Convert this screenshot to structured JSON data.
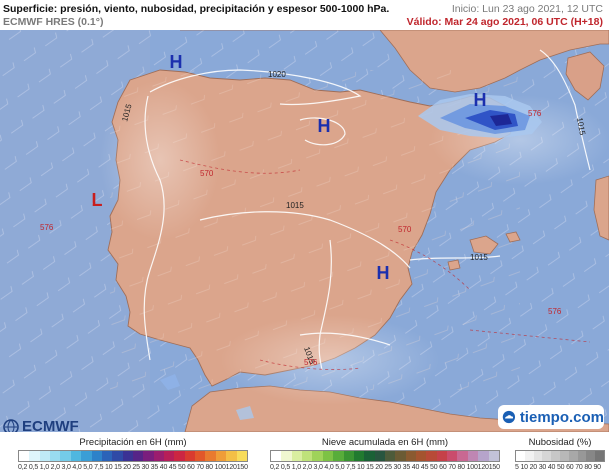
{
  "header": {
    "title": "Superficie: presión, viento, nubosidad, precipitación y espesor 500-1000 hPa.",
    "model": "ECMWF HRES (0.1°)",
    "init": "Inicio: Lun 23 ago 2021, 12 UTC",
    "valid": "Válido: Mar 24 ago 2021, 06 UTC (H+18)"
  },
  "map": {
    "pressure_centers": [
      {
        "label": "H",
        "type": "high"
      },
      {
        "label": "H",
        "type": "high"
      },
      {
        "label": "H",
        "type": "high"
      },
      {
        "label": "H",
        "type": "high"
      },
      {
        "label": "L",
        "type": "low"
      }
    ],
    "isobar_labels": [
      "1020",
      "1015",
      "1015",
      "1015",
      "1015",
      "1015"
    ],
    "thickness_labels": [
      "570",
      "570",
      "576",
      "576",
      "576",
      "576"
    ],
    "colors": {
      "sea": "#8aa9d8",
      "land": "#dba58c",
      "high": "#1b2fae",
      "low": "#c81e1e",
      "isobar": "#ffffff",
      "thickness": "#c0262d"
    }
  },
  "logos": {
    "ecmwf": "ECMWF",
    "tiempo": "tiempo.com"
  },
  "legends": {
    "precip": {
      "title": "Precipitación en 6H (mm)",
      "labels": "0,2 0,5 1,0 2,0 3,0 4,0 5,0 7,5 10 15 20 25 30 35 40 45 50 60 70 80 100120150",
      "colors": [
        "#ffffff",
        "#dff5fb",
        "#bfeaf6",
        "#99dcf0",
        "#74cbe8",
        "#4fb7e0",
        "#3a9ed6",
        "#2d82c9",
        "#2b63b8",
        "#2f4aa6",
        "#3b3294",
        "#562487",
        "#7a1e7d",
        "#9b1d6e",
        "#b71e58",
        "#cc2642",
        "#d93b2f",
        "#e2572a",
        "#e97a2f",
        "#ef9d38",
        "#f4bf46",
        "#f8dc5c"
      ]
    },
    "snow": {
      "title": "Nieve acumulada en 6H (mm)",
      "labels": "0,2 0,5 1,0 2,0 3,0 4,0 5,0 7,5 10 15 20 25 30 35 40 45 50 60 70 80 100120150",
      "colors": [
        "#ffffff",
        "#f0f7d0",
        "#d9eea0",
        "#bfe27a",
        "#9fd35a",
        "#7dc245",
        "#58ad3a",
        "#3a9432",
        "#217a2f",
        "#1a6136",
        "#28553f",
        "#4d5b3a",
        "#6b5b34",
        "#8a5a30",
        "#a4542f",
        "#b84a37",
        "#c54149",
        "#ca4c6c",
        "#c96892",
        "#bf86b3",
        "#b6a4cb",
        "#c2c2d8"
      ]
    },
    "clouds": {
      "title": "Nubosidad (%)",
      "labels": "5 10 20 30 40 50 60 70 80 90",
      "colors": [
        "#ffffff",
        "#f2f2f2",
        "#e4e4e4",
        "#d6d6d6",
        "#c7c7c7",
        "#b8b8b8",
        "#a8a8a8",
        "#989898",
        "#878787",
        "#767676"
      ]
    }
  }
}
